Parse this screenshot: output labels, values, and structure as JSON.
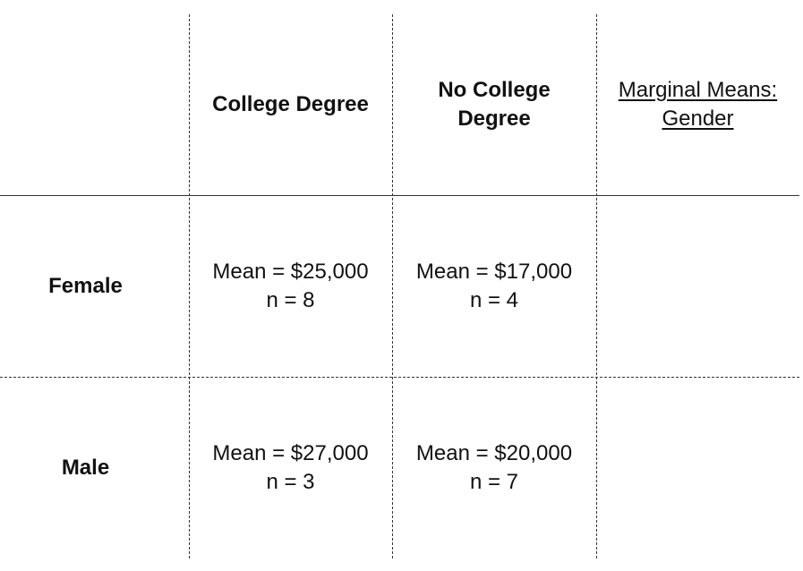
{
  "table": {
    "column_headers": [
      "College Degree",
      "No College Degree",
      "Marginal Means: Gender"
    ],
    "rows": [
      {
        "label": "Female",
        "cells": [
          {
            "mean": "Mean = $25,000",
            "n": "n = 8"
          },
          {
            "mean": "Mean = $17,000",
            "n": "n = 4"
          },
          {
            "mean": "",
            "n": ""
          }
        ]
      },
      {
        "label": "Male",
        "cells": [
          {
            "mean": "Mean = $27,000",
            "n": "n = 3"
          },
          {
            "mean": "Mean = $20,000",
            "n": "n = 7"
          },
          {
            "mean": "",
            "n": ""
          }
        ]
      }
    ]
  },
  "chart_data": {
    "type": "table",
    "columns": [
      "College Degree",
      "No College Degree",
      "Marginal Means: Gender"
    ],
    "rows": [
      {
        "label": "Female",
        "values": [
          "Mean = $25,000\nn = 8",
          "Mean = $17,000\nn = 4",
          ""
        ]
      },
      {
        "label": "Male",
        "values": [
          "Mean = $27,000\nn = 3",
          "Mean = $20,000\nn = 7",
          ""
        ]
      }
    ]
  }
}
